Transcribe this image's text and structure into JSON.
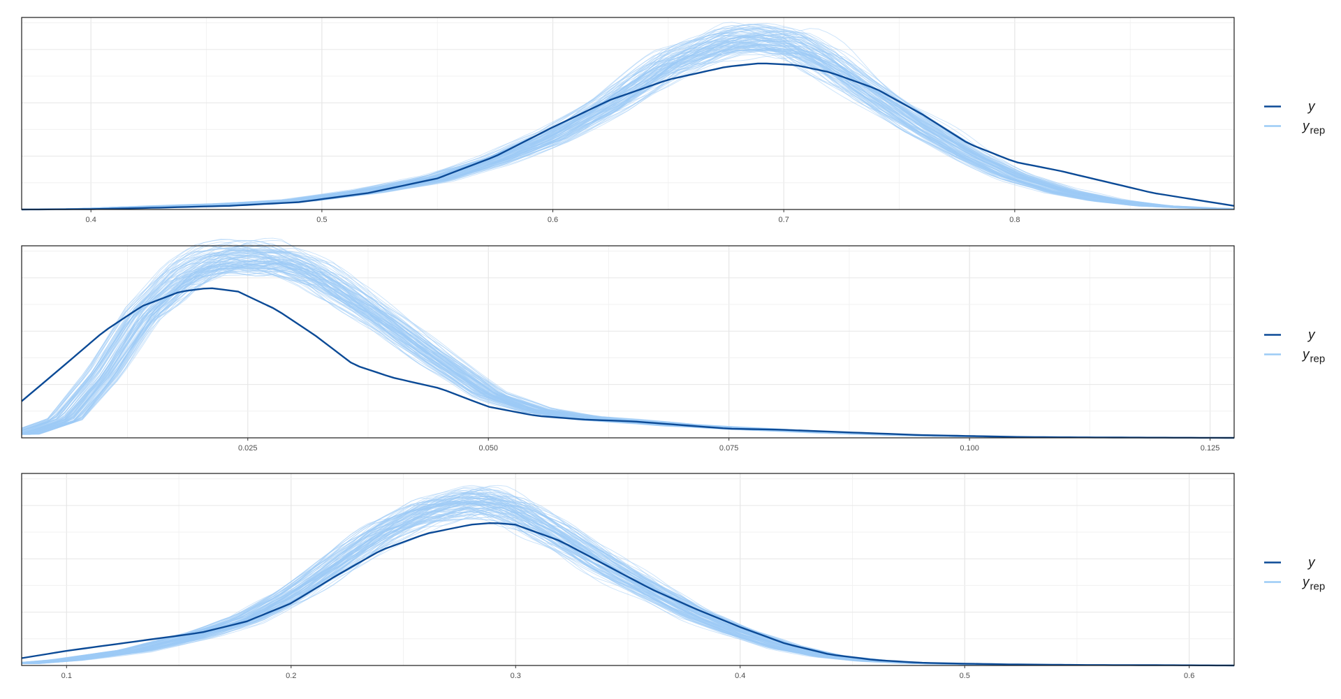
{
  "chart_data": [
    {
      "type": "line",
      "plot_kind": "posterior predictive density overlay",
      "xlim": [
        0.37,
        0.895
      ],
      "x_ticks": [
        0.4,
        0.5,
        0.6,
        0.7,
        0.8
      ],
      "x_tick_labels": [
        "0.4",
        "0.5",
        "0.6",
        "0.7",
        "0.8"
      ],
      "y_axis_labels_shown": false,
      "grid": true,
      "legend_position": "right",
      "colors": {
        "y": "#0b4a96",
        "yrep": "#9ccbf5"
      },
      "series": [
        {
          "name": "y",
          "x": [
            0.37,
            0.4,
            0.43,
            0.46,
            0.49,
            0.52,
            0.55,
            0.575,
            0.6,
            0.625,
            0.65,
            0.675,
            0.69,
            0.705,
            0.72,
            0.74,
            0.76,
            0.78,
            0.8,
            0.82,
            0.84,
            0.86,
            0.88,
            0.895
          ],
          "values": [
            0.0,
            0.002,
            0.01,
            0.02,
            0.04,
            0.09,
            0.17,
            0.29,
            0.45,
            0.6,
            0.71,
            0.78,
            0.8,
            0.79,
            0.75,
            0.66,
            0.52,
            0.36,
            0.26,
            0.21,
            0.15,
            0.09,
            0.05,
            0.02
          ]
        }
      ],
      "yrep_mean": {
        "name": "yrep",
        "x": [
          0.37,
          0.4,
          0.43,
          0.46,
          0.49,
          0.52,
          0.55,
          0.575,
          0.6,
          0.625,
          0.65,
          0.675,
          0.69,
          0.705,
          0.72,
          0.74,
          0.76,
          0.78,
          0.8,
          0.82,
          0.84,
          0.86,
          0.88,
          0.895
        ],
        "values": [
          0.0,
          0.005,
          0.018,
          0.03,
          0.05,
          0.1,
          0.17,
          0.27,
          0.4,
          0.58,
          0.8,
          0.92,
          0.93,
          0.9,
          0.8,
          0.62,
          0.45,
          0.3,
          0.18,
          0.1,
          0.05,
          0.02,
          0.008,
          0.003
        ]
      },
      "yrep_draws": 100,
      "legend": [
        "y",
        "rep"
      ]
    },
    {
      "type": "line",
      "plot_kind": "posterior predictive density overlay",
      "xlim": [
        0.0015,
        0.1275
      ],
      "x_ticks": [
        0.025,
        0.05,
        0.075,
        0.1,
        0.125
      ],
      "x_tick_labels": [
        "0.025",
        "0.050",
        "0.075",
        "0.100",
        "0.125"
      ],
      "y_axis_labels_shown": false,
      "grid": true,
      "legend_position": "right",
      "colors": {
        "y": "#0b4a96",
        "yrep": "#9ccbf5"
      },
      "series": [
        {
          "name": "y",
          "x": [
            0.0015,
            0.006,
            0.01,
            0.014,
            0.018,
            0.021,
            0.024,
            0.028,
            0.032,
            0.036,
            0.04,
            0.045,
            0.05,
            0.055,
            0.06,
            0.065,
            0.07,
            0.075,
            0.08,
            0.085,
            0.09,
            0.095,
            0.1,
            0.105,
            0.11,
            0.115,
            0.12,
            0.1275
          ],
          "values": [
            0.2,
            0.4,
            0.58,
            0.72,
            0.8,
            0.82,
            0.8,
            0.7,
            0.56,
            0.4,
            0.33,
            0.27,
            0.17,
            0.12,
            0.1,
            0.09,
            0.07,
            0.05,
            0.045,
            0.035,
            0.025,
            0.015,
            0.01,
            0.005,
            0.003,
            0.002,
            0.001,
            0.0
          ]
        }
      ],
      "yrep_mean": {
        "name": "yrep",
        "x": [
          0.0015,
          0.006,
          0.01,
          0.014,
          0.018,
          0.021,
          0.024,
          0.028,
          0.032,
          0.036,
          0.04,
          0.045,
          0.05,
          0.055,
          0.06,
          0.065,
          0.07,
          0.075,
          0.08,
          0.085,
          0.09,
          0.095,
          0.1,
          0.105,
          0.11,
          0.115,
          0.12,
          0.1275
        ],
        "values": [
          0.02,
          0.1,
          0.35,
          0.68,
          0.88,
          0.96,
          0.99,
          0.98,
          0.9,
          0.76,
          0.61,
          0.42,
          0.24,
          0.15,
          0.11,
          0.09,
          0.07,
          0.055,
          0.042,
          0.03,
          0.02,
          0.012,
          0.007,
          0.004,
          0.002,
          0.001,
          0.0005,
          0.0
        ]
      },
      "yrep_draws": 100,
      "legend": [
        "y",
        "rep"
      ]
    },
    {
      "type": "line",
      "plot_kind": "posterior predictive density overlay",
      "xlim": [
        0.08,
        0.62
      ],
      "x_ticks": [
        0.1,
        0.2,
        0.3,
        0.4,
        0.5,
        0.6
      ],
      "x_tick_labels": [
        "0.1",
        "0.2",
        "0.3",
        "0.4",
        "0.5",
        "0.6"
      ],
      "y_axis_labels_shown": false,
      "grid": true,
      "legend_position": "right",
      "colors": {
        "y": "#0b4a96",
        "yrep": "#9ccbf5"
      },
      "series": [
        {
          "name": "y",
          "x": [
            0.08,
            0.1,
            0.13,
            0.16,
            0.18,
            0.2,
            0.22,
            0.24,
            0.26,
            0.28,
            0.29,
            0.3,
            0.32,
            0.34,
            0.36,
            0.38,
            0.4,
            0.42,
            0.44,
            0.46,
            0.48,
            0.5,
            0.52,
            0.55,
            0.58,
            0.62
          ],
          "values": [
            0.04,
            0.08,
            0.13,
            0.18,
            0.24,
            0.34,
            0.49,
            0.63,
            0.72,
            0.77,
            0.78,
            0.77,
            0.68,
            0.55,
            0.42,
            0.31,
            0.21,
            0.12,
            0.06,
            0.03,
            0.015,
            0.01,
            0.006,
            0.003,
            0.002,
            0.0
          ]
        }
      ],
      "yrep_mean": {
        "name": "yrep",
        "x": [
          0.08,
          0.1,
          0.13,
          0.16,
          0.18,
          0.2,
          0.22,
          0.24,
          0.26,
          0.28,
          0.29,
          0.3,
          0.32,
          0.34,
          0.36,
          0.38,
          0.4,
          0.42,
          0.44,
          0.46,
          0.48,
          0.5,
          0.52,
          0.55,
          0.58,
          0.62
        ],
        "values": [
          0.01,
          0.03,
          0.08,
          0.17,
          0.25,
          0.38,
          0.55,
          0.72,
          0.84,
          0.89,
          0.88,
          0.84,
          0.7,
          0.55,
          0.41,
          0.28,
          0.18,
          0.1,
          0.05,
          0.025,
          0.012,
          0.006,
          0.003,
          0.001,
          0.0005,
          0.0
        ]
      },
      "yrep_draws": 100,
      "legend": [
        "y",
        "rep"
      ]
    }
  ]
}
